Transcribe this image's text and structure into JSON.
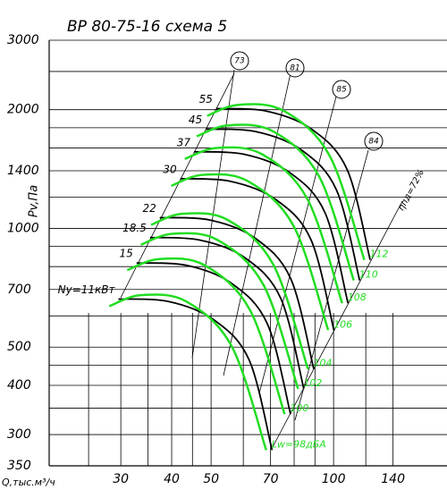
{
  "chart_data": {
    "type": "line",
    "title": "ВР 80-75-16   схема 5",
    "x_label": "Q,тыс.м³/ч",
    "y_label": "Pv,Па",
    "corner_label": "350",
    "log_x": true,
    "log_y": true,
    "grid": true,
    "xlim": [
      20,
      190
    ],
    "xticks": [
      30,
      40,
      50,
      70,
      100,
      140
    ],
    "xminor": [
      25,
      35,
      45,
      60,
      80,
      90,
      120
    ],
    "ylim": [
      250,
      3000
    ],
    "yticks": [
      300,
      400,
      500,
      700,
      1000,
      1400,
      2000,
      3000
    ],
    "yminor": [
      350,
      450,
      600,
      800,
      900,
      1200,
      1600,
      1800,
      2500
    ],
    "efficiency_labels": [
      "73",
      "81",
      "85",
      "84",
      "ηпд=72%"
    ],
    "series": [
      {
        "name": "55",
        "color": "#000000",
        "x": [
          51.5,
          68.3,
          88.3,
          108,
          123
        ],
        "values": [
          2013,
          1984,
          1785,
          1409,
          832
        ]
      },
      {
        "name": "45",
        "color": "#000000",
        "x": [
          48.5,
          64.3,
          83.2,
          101.7,
          115.9
        ],
        "values": [
          1786,
          1760,
          1583,
          1250,
          738
        ]
      },
      {
        "name": "37",
        "color": "#000000",
        "x": [
          45.4,
          60.2,
          77.9,
          95.3,
          108.5
        ],
        "values": [
          1564,
          1542,
          1387,
          1095,
          646
        ]
      },
      {
        "name": "30",
        "color": "#000000",
        "x": [
          42.0,
          55.7,
          72.0,
          88.0,
          100.2
        ],
        "values": [
          1337,
          1317,
          1185,
          936,
          552
        ]
      },
      {
        "name": "22",
        "color": "#000000",
        "x": [
          37.4,
          49.7,
          64.2,
          78.5,
          89.4
        ],
        "values": [
          1065,
          1050,
          944,
          745,
          440
        ]
      },
      {
        "name": "18.5",
        "color": "#000000",
        "x": [
          35.4,
          46.9,
          60.7,
          74.2,
          84.5
        ],
        "values": [
          948,
          934,
          841,
          664,
          392
        ]
      },
      {
        "name": "15",
        "color": "#000000",
        "x": [
          32.8,
          43.5,
          56.2,
          68.8,
          78.4
        ],
        "values": [
          817,
          806,
          725,
          572,
          338
        ]
      },
      {
        "name": "Ny=11кВт",
        "color": "#000000",
        "x": [
          29.6,
          39.2,
          50.7,
          62.0,
          70.6
        ],
        "values": [
          662,
          653,
          587,
          464,
          274
        ]
      },
      {
        "name": "112",
        "color": "#22dd22",
        "x": [
          48.9,
          58.5,
          75.6,
          97.9,
          119
        ],
        "values": [
          1930,
          2058,
          1984,
          1525,
          832
        ]
      },
      {
        "name": "110",
        "color": "#22dd22",
        "x": [
          46.1,
          55.1,
          71.2,
          92.2,
          112.1
        ],
        "values": [
          1712,
          1825,
          1760,
          1353,
          738
        ]
      },
      {
        "name": "108",
        "color": "#22dd22",
        "x": [
          43.1,
          51.6,
          66.7,
          86.3,
          105
        ],
        "values": [
          1500,
          1599,
          1542,
          1185,
          646
        ]
      },
      {
        "name": "106",
        "color": "#22dd22",
        "x": [
          39.9,
          47.7,
          61.6,
          79.8,
          97.0
        ],
        "values": [
          1282,
          1367,
          1317,
          1013,
          552
        ]
      },
      {
        "name": "104",
        "color": "#22dd22",
        "x": [
          35.6,
          42.5,
          55.0,
          71.2,
          86.5
        ],
        "values": [
          1021,
          1089,
          1050,
          807,
          440
        ]
      },
      {
        "name": "102",
        "color": "#22dd22",
        "x": [
          33.6,
          40.2,
          51.9,
          67.3,
          81.8
        ],
        "values": [
          909,
          969,
          934,
          718,
          392
        ]
      },
      {
        "name": "100",
        "color": "#22dd22",
        "x": [
          31.1,
          37.3,
          48.2,
          62.4,
          75.8
        ],
        "values": [
          784,
          836,
          806,
          619,
          338
        ]
      },
      {
        "name": "Lw=98дБА",
        "color": "#22dd22",
        "x": [
          28.1,
          33.6,
          43.4,
          56.2,
          68.3
        ],
        "values": [
          635,
          677,
          653,
          502,
          274
        ]
      }
    ]
  }
}
